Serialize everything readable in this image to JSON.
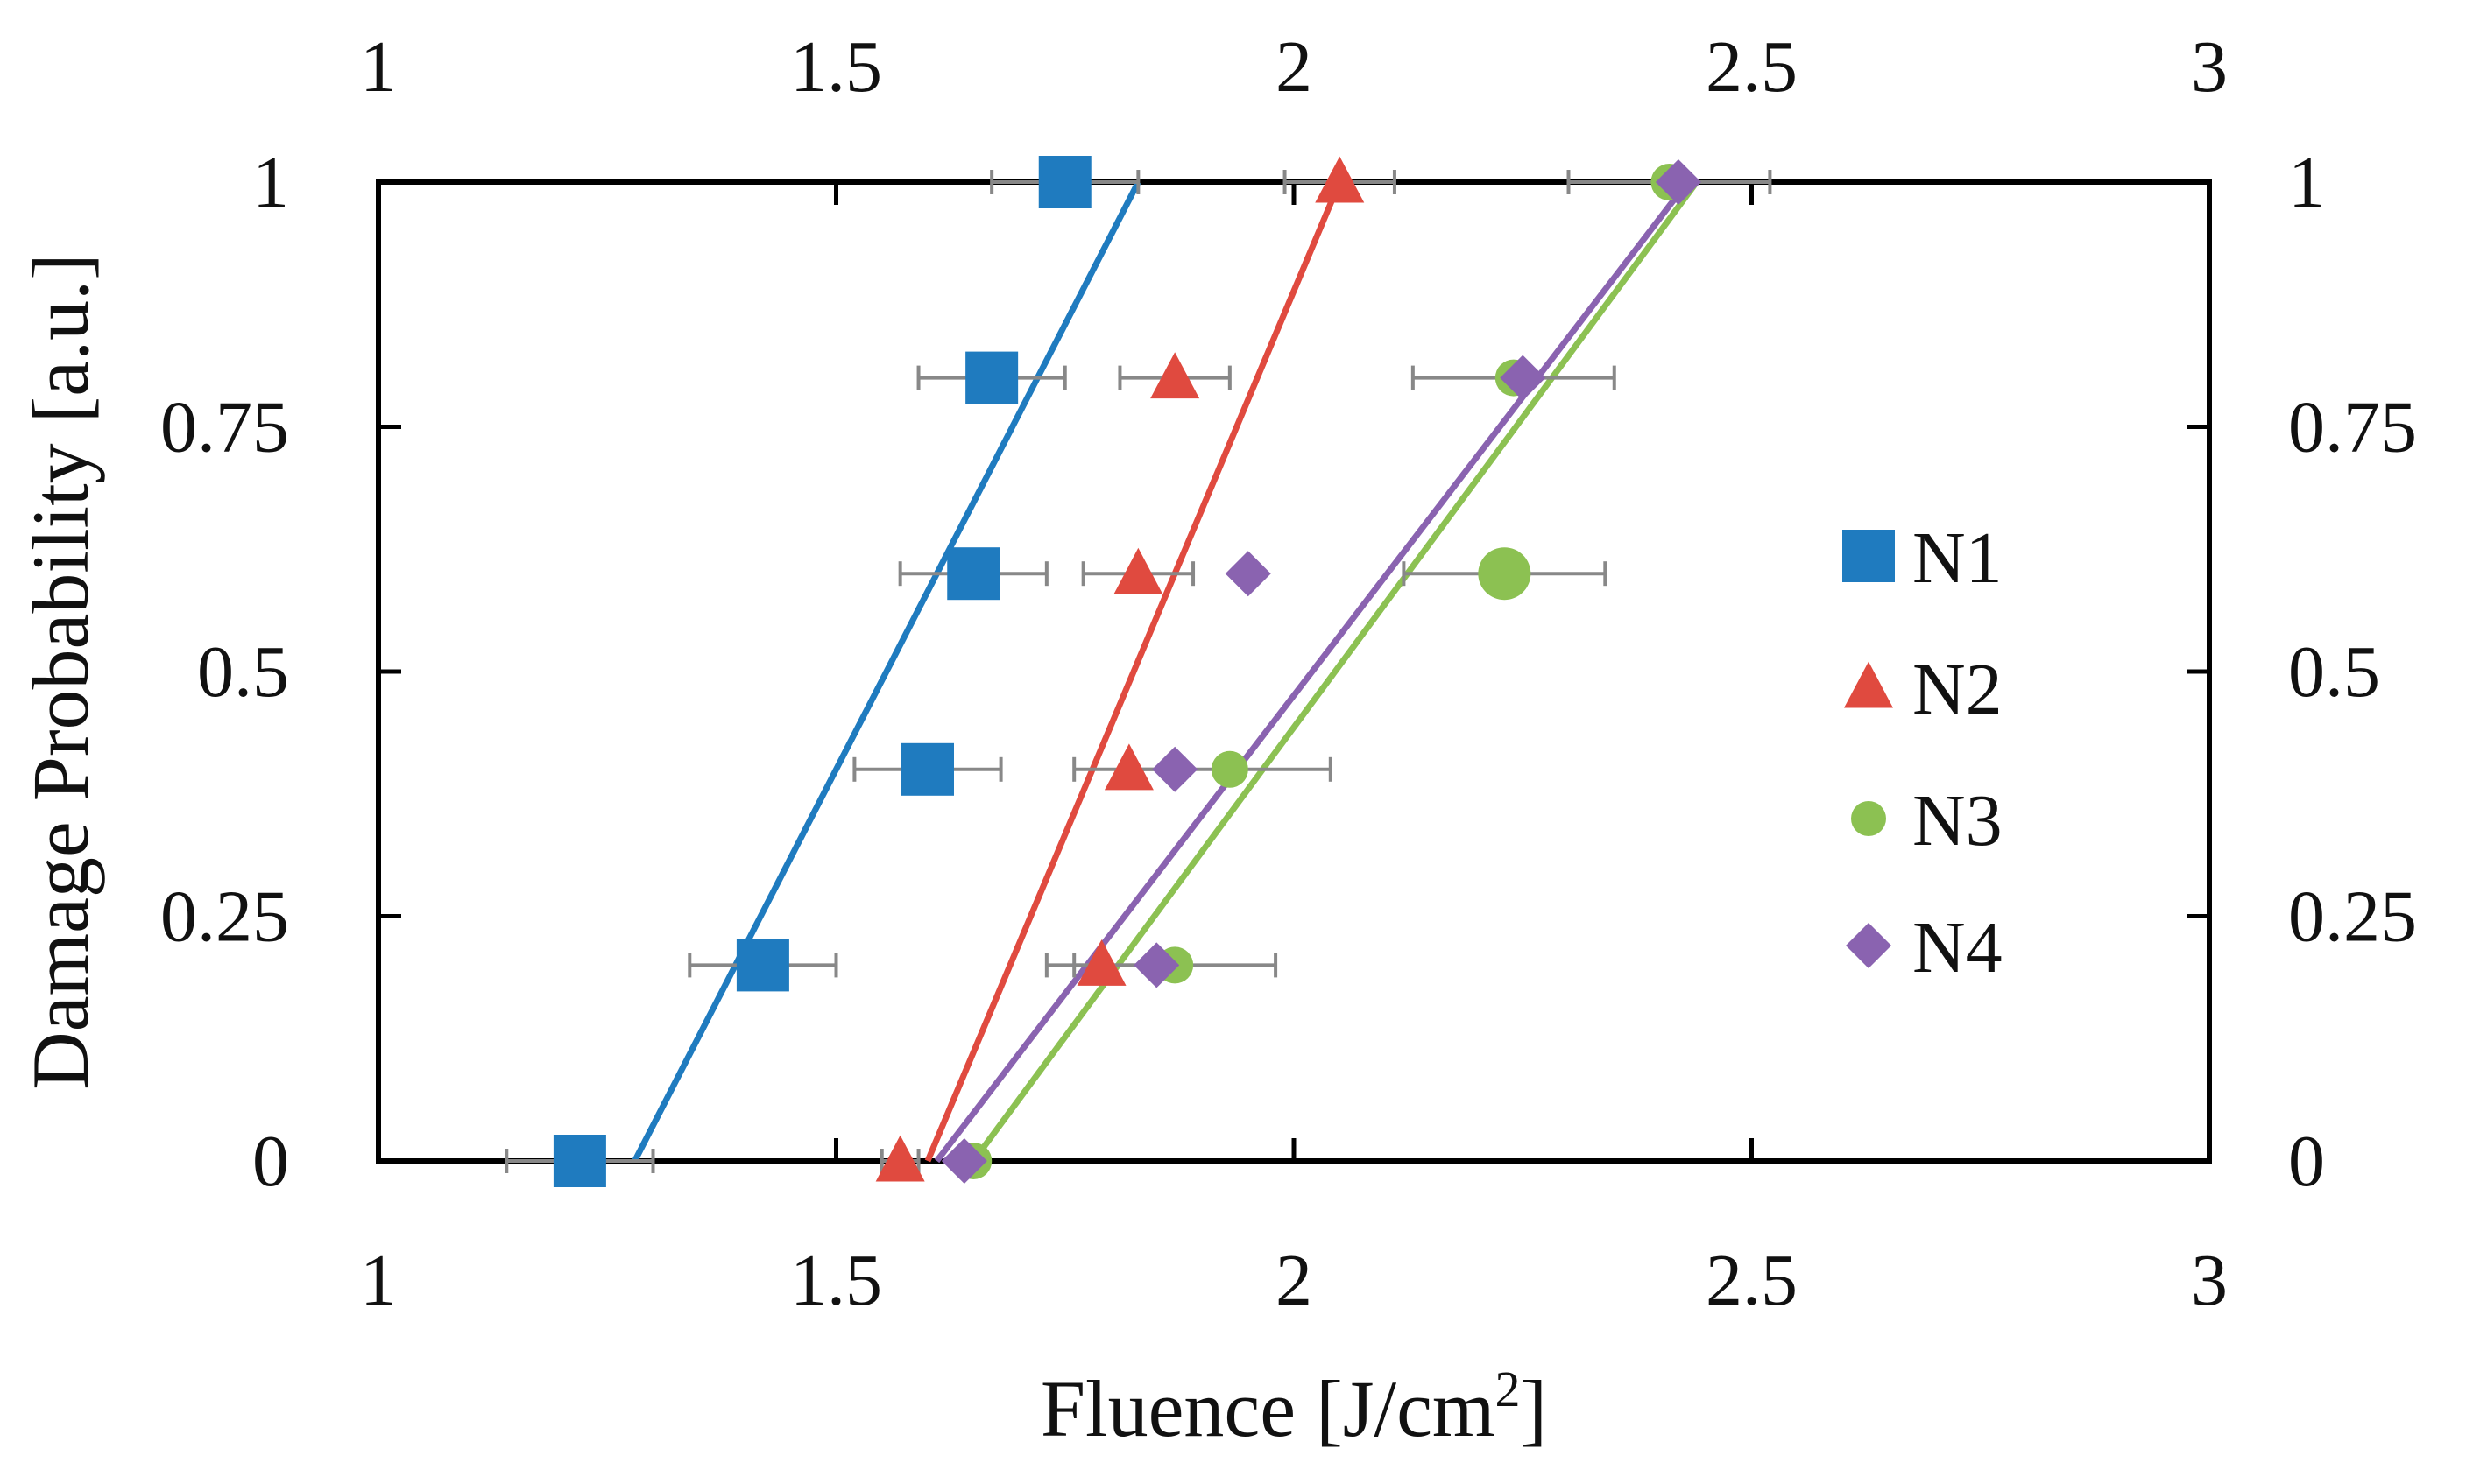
{
  "chart_data": {
    "type": "scatter",
    "title": "",
    "xlabel": "Fluence [J/cm",
    "xlabel_superscript": "2",
    "xlabel_suffix": "]",
    "ylabel": "Damage Probability [a.u.]",
    "xlim": [
      1,
      3
    ],
    "ylim": [
      0,
      1
    ],
    "x_ticks": [
      1,
      1.5,
      2,
      2.5,
      3
    ],
    "x_tick_labels": [
      "1",
      "1.5",
      "2",
      "2.5",
      "3"
    ],
    "y_ticks": [
      0,
      0.25,
      0.5,
      0.75,
      1
    ],
    "y_tick_labels": [
      "0",
      "0.25",
      "0.5",
      "0.75",
      "1"
    ],
    "grid": false,
    "legend_position": "right",
    "series": [
      {
        "name": "N1",
        "color": "#1f7bbf",
        "marker": "square",
        "points": [
          {
            "x": 1.22,
            "y": 0.0,
            "err": 0.08
          },
          {
            "x": 1.42,
            "y": 0.2,
            "err": 0.08
          },
          {
            "x": 1.6,
            "y": 0.4,
            "err": 0.08
          },
          {
            "x": 1.65,
            "y": 0.6,
            "err": 0.08
          },
          {
            "x": 1.67,
            "y": 0.8,
            "err": 0.08
          },
          {
            "x": 1.75,
            "y": 1.0,
            "err": 0.08
          }
        ],
        "fit": {
          "x0": 1.28,
          "x1": 1.83
        }
      },
      {
        "name": "N2",
        "color": "#e04a3f",
        "marker": "triangle",
        "points": [
          {
            "x": 1.57,
            "y": 0.0,
            "err": 0.02
          },
          {
            "x": 1.79,
            "y": 0.2,
            "err": 0.06
          },
          {
            "x": 1.82,
            "y": 0.4,
            "err": 0.06
          },
          {
            "x": 1.83,
            "y": 0.6,
            "err": 0.06
          },
          {
            "x": 1.87,
            "y": 0.8,
            "err": 0.06
          },
          {
            "x": 2.05,
            "y": 1.0,
            "err": 0.06
          }
        ],
        "fit": {
          "x0": 1.6,
          "x1": 2.05
        }
      },
      {
        "name": "N3",
        "color": "#8cc152",
        "marker": "circle",
        "points": [
          {
            "x": 1.65,
            "y": 0.0,
            "err": 0.0
          },
          {
            "x": 1.87,
            "y": 0.2,
            "err": 0.11
          },
          {
            "x": 1.93,
            "y": 0.4,
            "err": 0.11
          },
          {
            "x": 2.23,
            "y": 0.6,
            "err": 0.11
          },
          {
            "x": 2.24,
            "y": 0.8,
            "err": 0.11
          },
          {
            "x": 2.41,
            "y": 1.0,
            "err": 0.11
          }
        ],
        "fit": {
          "x0": 1.65,
          "x1": 2.44
        }
      },
      {
        "name": "N4",
        "color": "#8a63b0",
        "marker": "diamond",
        "points": [
          {
            "x": 1.64,
            "y": 0.0,
            "err": 0.0
          },
          {
            "x": 1.85,
            "y": 0.2,
            "err": 0.0
          },
          {
            "x": 1.87,
            "y": 0.4,
            "err": 0.0
          },
          {
            "x": 1.95,
            "y": 0.6,
            "err": 0.0
          },
          {
            "x": 2.25,
            "y": 0.8,
            "err": 0.0
          },
          {
            "x": 2.42,
            "y": 1.0,
            "err": 0.0
          }
        ],
        "fit": {
          "x0": 1.61,
          "x1": 2.43
        }
      }
    ]
  }
}
